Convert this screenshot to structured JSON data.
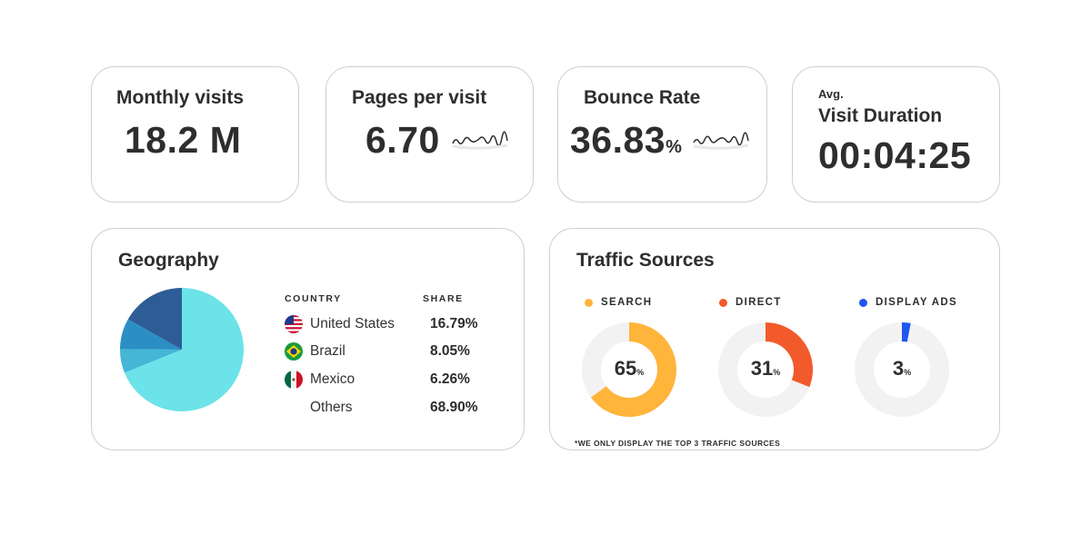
{
  "stats": {
    "monthly_visits": {
      "label": "Monthly visits",
      "value": "18.2 M"
    },
    "pages_per_visit": {
      "label": "Pages per visit",
      "value": "6.70"
    },
    "bounce_rate": {
      "label": "Bounce Rate",
      "value": "36.83",
      "unit": "%"
    },
    "visit_duration": {
      "label_small": "Avg.",
      "label": "Visit Duration",
      "value": "00:04:25"
    }
  },
  "geography": {
    "title": "Geography",
    "col_country": "COUNTRY",
    "col_share": "SHARE",
    "rows": [
      {
        "country": "United States",
        "share": "16.79%",
        "flag": "us-flag-icon"
      },
      {
        "country": "Brazil",
        "share": "8.05%",
        "flag": "brazil-flag-icon"
      },
      {
        "country": "Mexico",
        "share": "6.26%",
        "flag": "mexico-flag-icon"
      },
      {
        "country": "Others",
        "share": "68.90%",
        "flag": ""
      }
    ],
    "pie_colors": [
      "#2e5c96",
      "#2b8fc4",
      "#44b6d6",
      "#6be3e8"
    ]
  },
  "traffic": {
    "title": "Traffic Sources",
    "sources": [
      {
        "label": "SEARCH",
        "value": "65",
        "unit": "%",
        "color": "#ffb43a"
      },
      {
        "label": "DIRECT",
        "value": "31",
        "unit": "%",
        "color": "#f25a2b"
      },
      {
        "label": "DISPLAY ADS",
        "value": "3",
        "unit": "%",
        "color": "#1e56f0"
      }
    ],
    "track_color": "#f2f2f2",
    "footnote": "*WE ONLY DISPLAY THE TOP 3 TRAFFIC SOURCES"
  },
  "chart_data": [
    {
      "type": "pie",
      "categories": [
        "United States",
        "Brazil",
        "Mexico",
        "Others"
      ],
      "values": [
        16.79,
        8.05,
        6.26,
        68.9
      ]
    },
    {
      "type": "pie",
      "categories": [
        "SEARCH",
        "DIRECT",
        "DISPLAY ADS"
      ],
      "values": [
        65,
        31,
        3
      ]
    }
  ]
}
